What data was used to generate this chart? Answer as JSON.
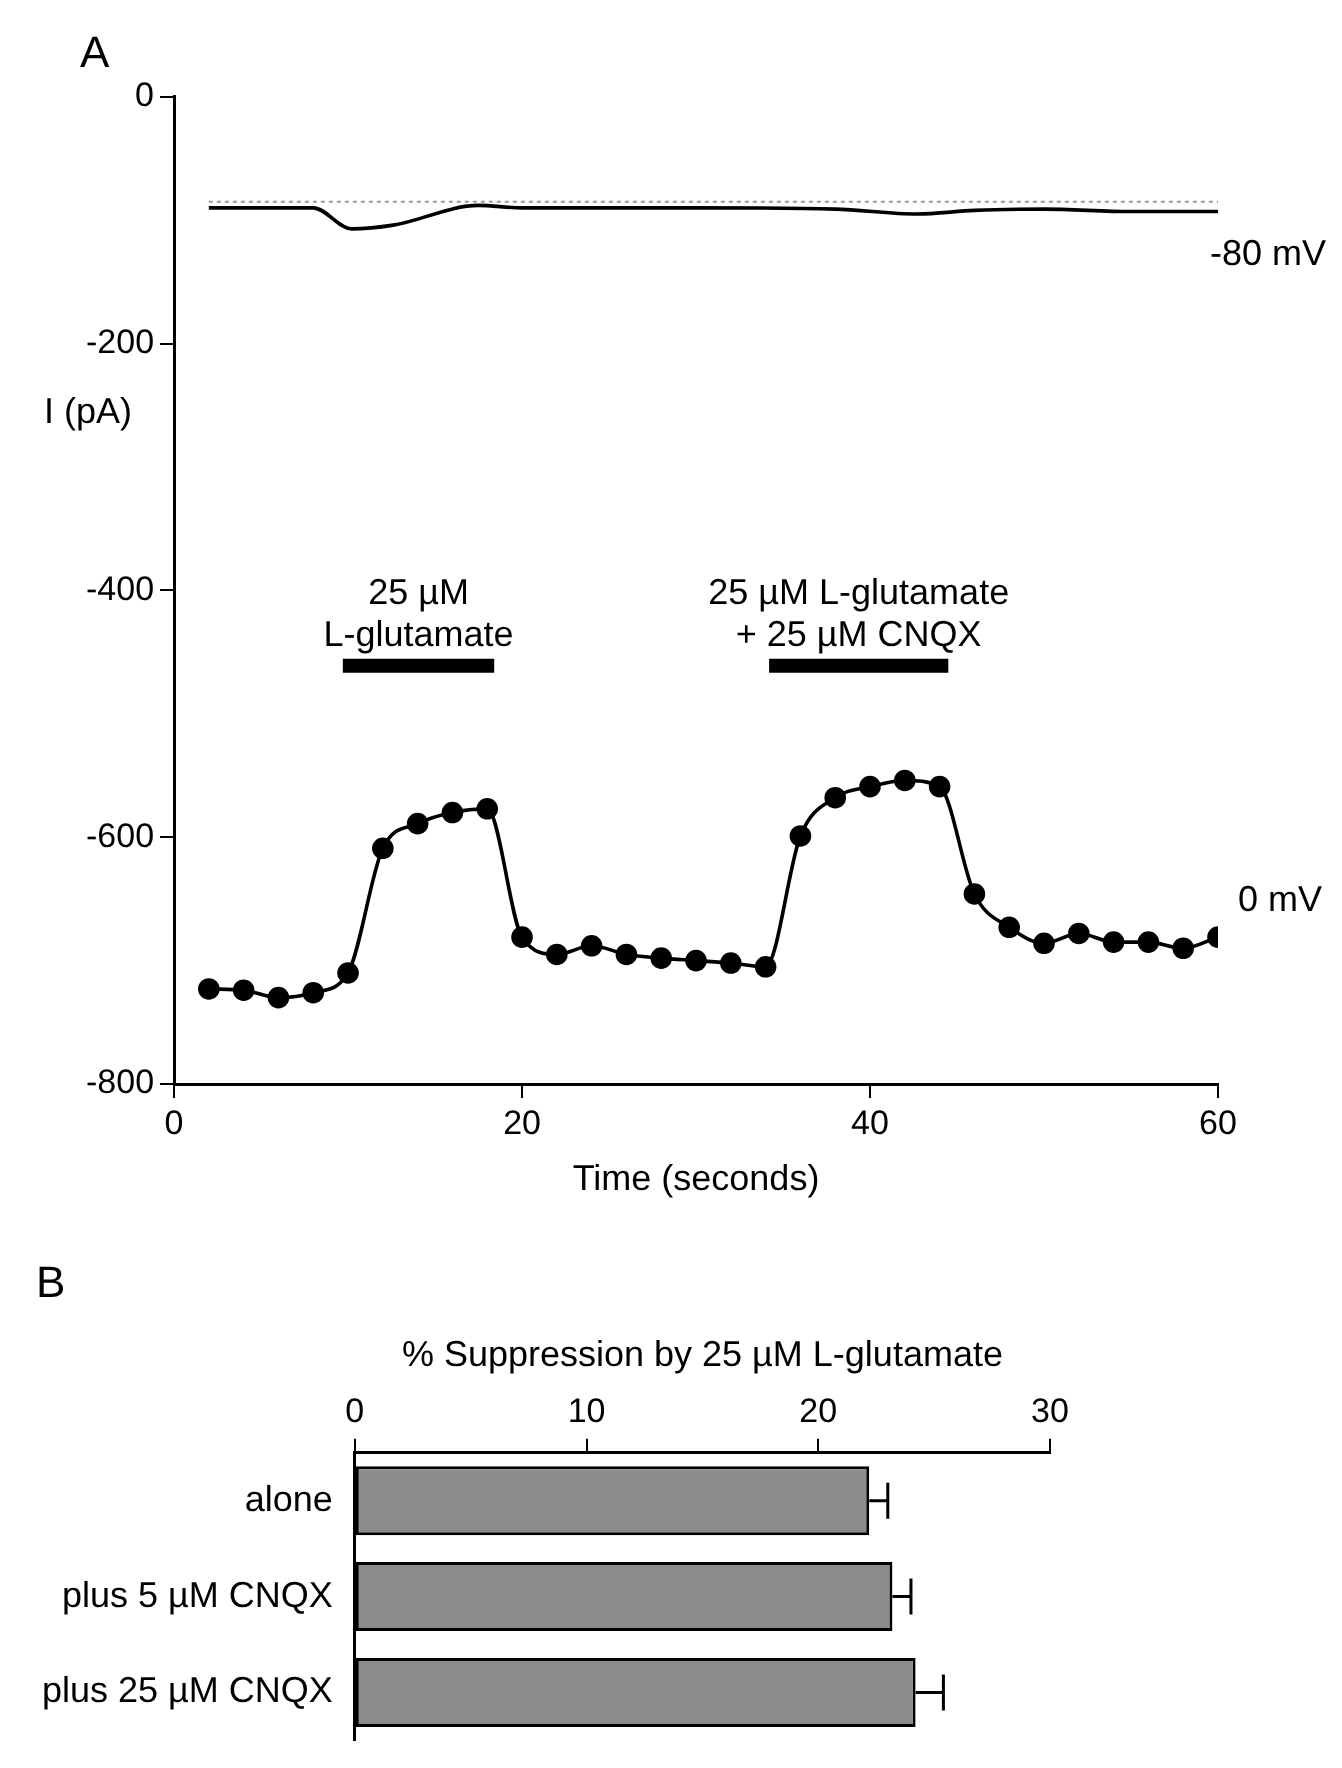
{
  "chart_data": [
    {
      "type": "line",
      "title": "A",
      "xlabel": "Time (seconds)",
      "ylabel": "I (pA)",
      "xlim": [
        0,
        60
      ],
      "xticks": [
        0,
        20,
        40,
        60
      ],
      "ylim": [
        -800,
        0
      ],
      "yticks": [
        0,
        -200,
        -400,
        -600,
        -800
      ],
      "grid": false,
      "legend": false,
      "series": [
        {
          "name": "-80 mV",
          "color": "#000000",
          "marker": "none",
          "x": [
            2,
            8,
            10.2,
            12.6,
            17.5,
            20,
            25,
            30,
            38,
            42.7,
            46,
            50,
            55,
            60
          ],
          "values": [
            -90,
            -90,
            -107,
            -104,
            -88,
            -90,
            -90,
            -90,
            -91,
            -95,
            -92,
            -91,
            -93,
            -93
          ]
        },
        {
          "name": "0 mV",
          "color": "#000000",
          "marker": "circle",
          "x": [
            2,
            4,
            6,
            8,
            10,
            12,
            14,
            16,
            18,
            20,
            22,
            24,
            26,
            28,
            30,
            32,
            34,
            36,
            38,
            40,
            42,
            44,
            46,
            48,
            50,
            52,
            54,
            56,
            58,
            60
          ],
          "values": [
            -723,
            -724,
            -730,
            -726,
            -710,
            -609,
            -589,
            -580,
            -577,
            -681,
            -695,
            -688,
            -695,
            -698,
            -700,
            -702,
            -705,
            -599,
            -568,
            -559,
            -554,
            -559,
            -646,
            -673,
            -686,
            -678,
            -685,
            -685,
            -690,
            -681
          ]
        },
        {
          "color": "#000000",
          "marker": "none",
          "x": [
            9.7,
            18.4
          ],
          "values": [
            -461,
            -461
          ]
        },
        {
          "color": "#000000",
          "marker": "none",
          "x": [
            34.2,
            44.5
          ],
          "values": [
            -461,
            -461
          ]
        }
      ],
      "annotations": [
        {
          "text": "25 µM\nL-glutamate",
          "x": 14.05,
          "y": -461
        },
        {
          "text": "25 µM L-glutamate\n+ 25 µM CNQX",
          "x": 39.35,
          "y": -461
        }
      ],
      "ref_lines": [
        {
          "axis": "y",
          "value": -85,
          "color": "#999999",
          "line_style": "dotted"
        }
      ]
    },
    {
      "type": "bar",
      "title": "B",
      "orientation": "horizontal",
      "xlabel": "% Suppression by 25 µM L-glutamate",
      "categories": [
        "alone",
        "plus 5 µM CNQX",
        "plus 25 µM CNQX"
      ],
      "values": [
        22.2,
        23.2,
        24.2
      ],
      "errors": [
        [
          22.2,
          23.0
        ],
        [
          23.2,
          24.0
        ],
        [
          24.2,
          25.4
        ]
      ],
      "color": "#8c8c8c",
      "xlim": [
        0,
        30
      ],
      "xticks": [
        0,
        10,
        20,
        30
      ],
      "grid": false,
      "legend": false
    }
  ]
}
